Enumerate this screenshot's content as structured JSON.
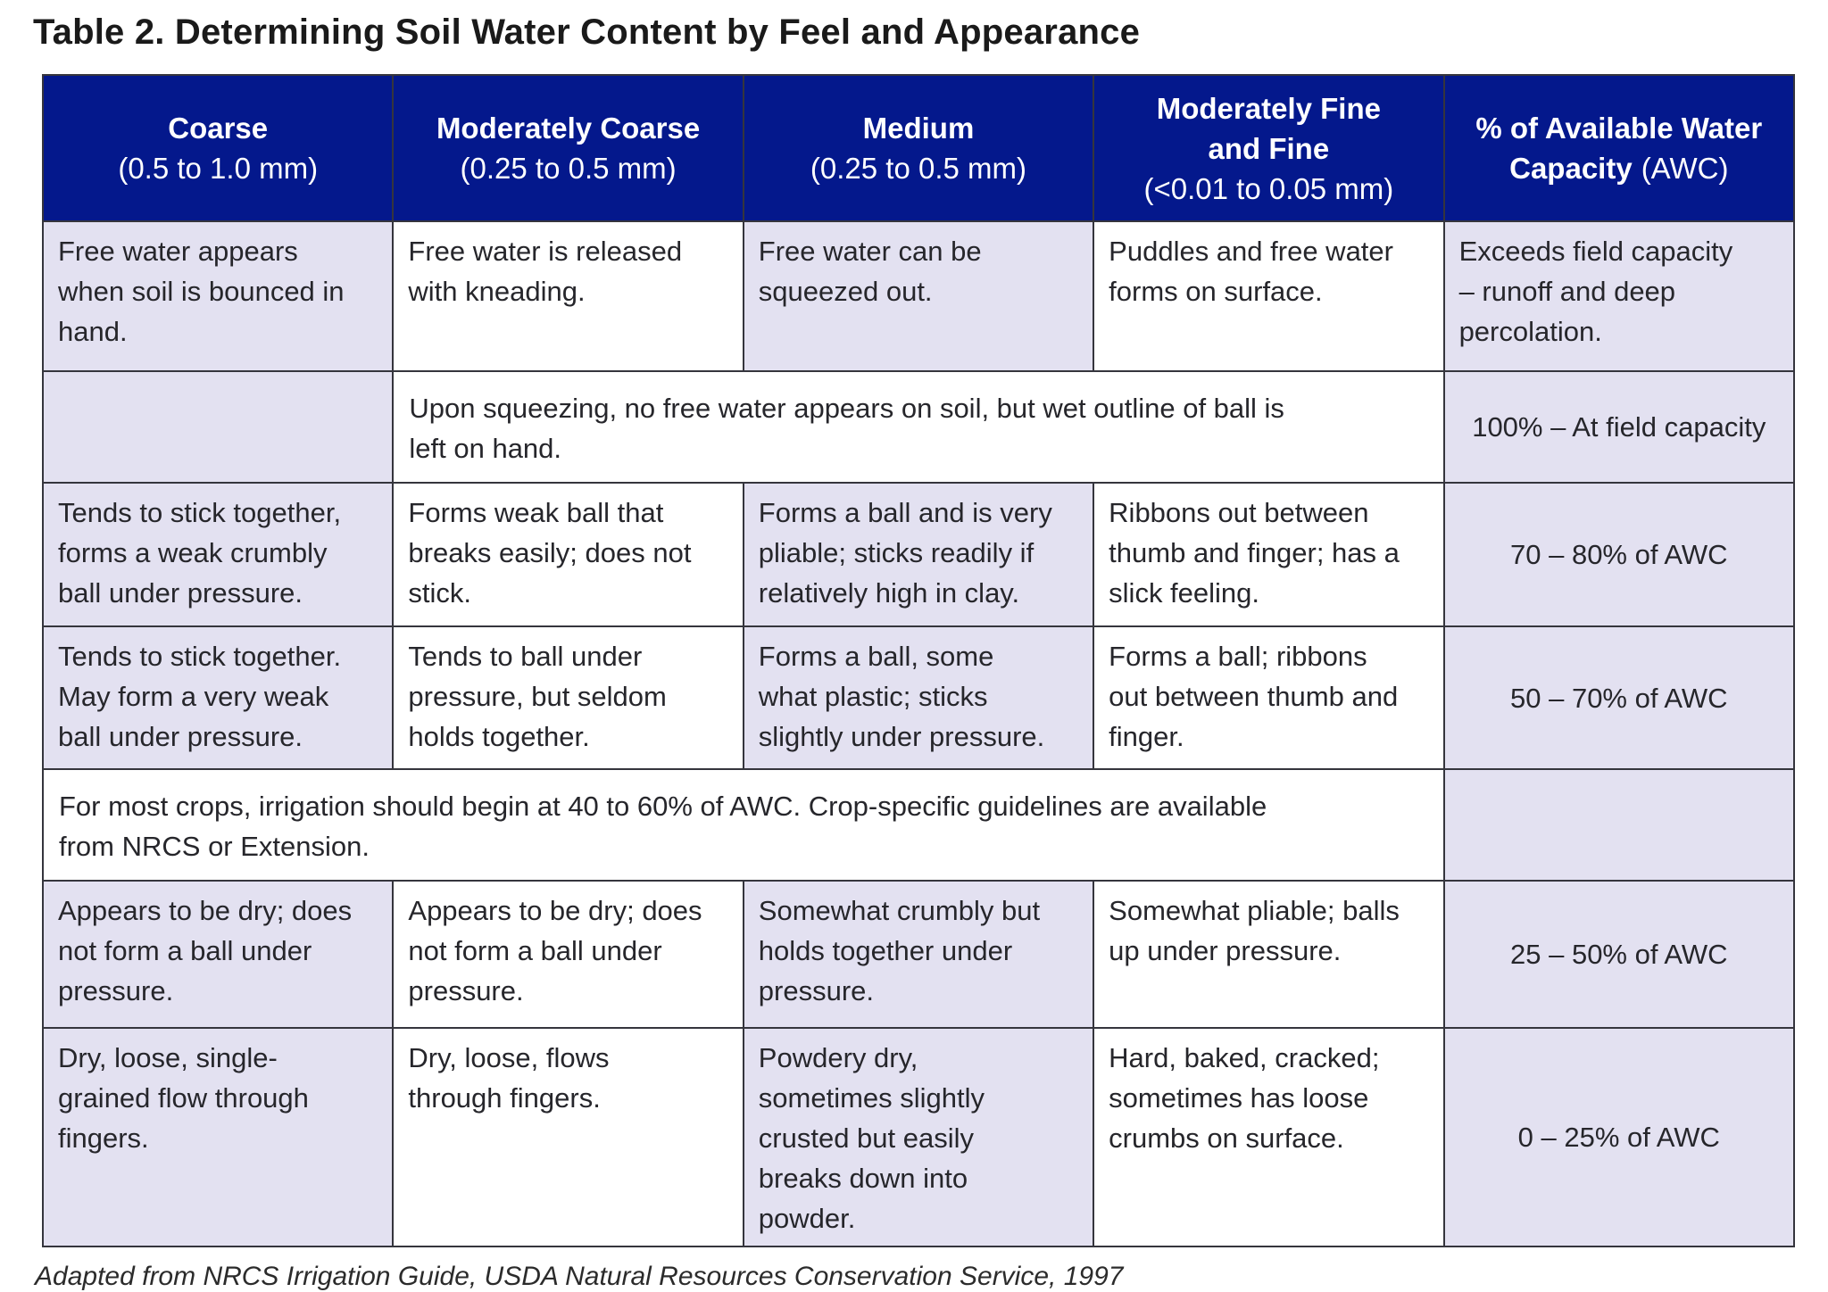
{
  "title": "Table 2. Determining Soil Water Content by Feel and Appearance",
  "footer": "Adapted from NRCS Irrigation Guide, USDA Natural Resources Conservation Service, 1997",
  "colors": {
    "header_bg": "#04188c",
    "header_text": "#ffffff",
    "stripe_lavender": "#e3e1f1",
    "cell_white": "#ffffff",
    "border": "#35353d"
  },
  "table": {
    "headers": [
      {
        "title": "Coarse",
        "subtitle": "(0.5 to 1.0 mm)"
      },
      {
        "title": "Moderately Coarse",
        "subtitle": "(0.25 to 0.5 mm)"
      },
      {
        "title": "Medium",
        "subtitle": "(0.25 to 0.5 mm)"
      },
      {
        "title": "Moderately Fine\nand Fine",
        "subtitle": "(<0.01 to 0.05 mm)"
      },
      {
        "title": "% of Available Water\nCapacity",
        "subtitle": "(AWC)"
      }
    ],
    "rows": [
      {
        "cells": [
          "Free water appears\nwhen soil is bounced in\nhand.",
          "Free water is released\nwith kneading.",
          "Free water can be\nsqueezed out.",
          "Puddles and free water\nforms on surface.",
          "Exceeds field capacity\n– runoff  and deep\npercolation."
        ]
      },
      {
        "merged": "Upon squeezing, no free water appears on soil, but wet outline of ball is\nleft on hand.",
        "awc": "100% – At field capacity"
      },
      {
        "cells": [
          "Tends to stick together,\nforms a weak crumbly\nball under pressure.",
          "Forms weak ball that\nbreaks easily; does not\nstick.",
          "Forms a ball and is very\npliable; sticks readily if\nrelatively high in clay.",
          "Ribbons out between\nthumb and finger; has a\nslick feeling."
        ],
        "awc": "70 – 80% of AWC"
      },
      {
        "cells": [
          "Tends to stick together.\nMay form a very weak\nball under pressure.",
          "Tends to ball under\npressure, but seldom\nholds together.",
          "Forms a ball, some\nwhat plastic; sticks\nslightly under pressure.",
          "Forms a ball; ribbons\nout between thumb and\nfinger."
        ],
        "awc": "50 – 70% of AWC"
      },
      {
        "note": "For most crops, irrigation should begin at 40 to 60% of AWC. Crop-specific guidelines are available\nfrom NRCS or Extension."
      },
      {
        "cells": [
          "Appears to be dry; does\nnot form a ball under\npressure.",
          "Appears to be dry; does\nnot form a ball under\npressure.",
          "Somewhat crumbly but\nholds together under\npressure.",
          "Somewhat pliable; balls\nup under pressure."
        ],
        "awc": "25 – 50% of AWC"
      },
      {
        "cells": [
          "Dry, loose, single-\ngrained flow through\nfingers.",
          "Dry, loose, flows\nthrough fingers.",
          "Powdery dry,\nsometimes slightly\ncrusted but easily\nbreaks down into\npowder.",
          "Hard, baked, cracked;\nsometimes has loose\ncrumbs on surface."
        ],
        "awc": "0 – 25% of AWC"
      }
    ]
  }
}
